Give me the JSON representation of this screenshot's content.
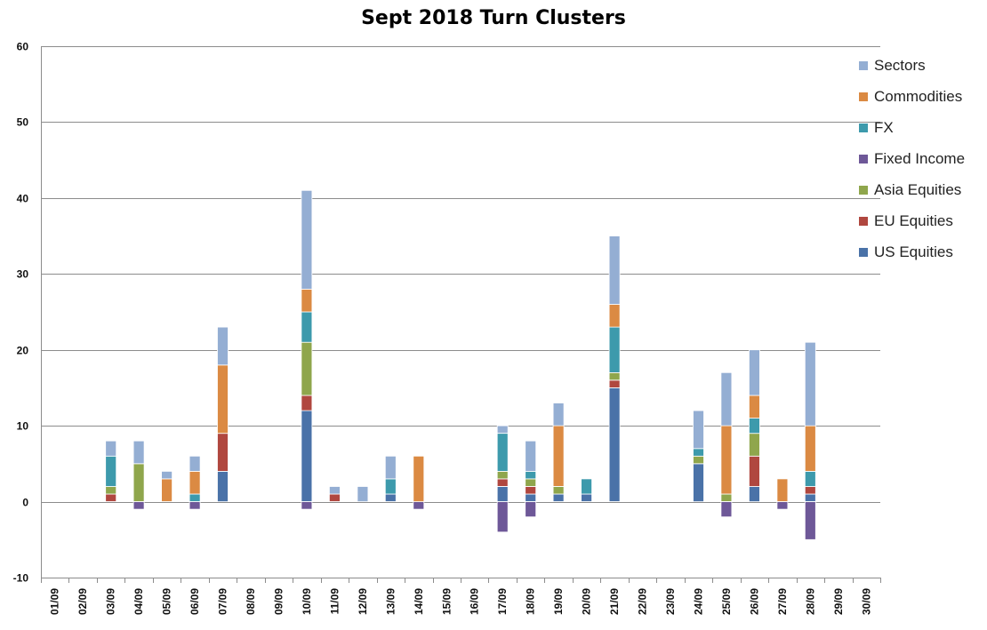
{
  "chart_data": {
    "type": "bar",
    "stacked": true,
    "title": "Sept 2018 Turn Clusters",
    "xlabel": "",
    "ylabel": "",
    "ylim": [
      -10,
      60
    ],
    "yticks": [
      "60",
      "50",
      "40",
      "30",
      "20",
      "10",
      "0",
      "-10"
    ],
    "grid": true,
    "legend_position": "right",
    "categories": [
      "01/09",
      "02/09",
      "03/09",
      "04/09",
      "05/09",
      "06/09",
      "07/09",
      "08/09",
      "09/09",
      "10/09",
      "11/09",
      "12/09",
      "13/09",
      "14/09",
      "15/09",
      "16/09",
      "17/09",
      "18/09",
      "19/09",
      "20/09",
      "21/09",
      "22/09",
      "23/09",
      "24/09",
      "25/09",
      "26/09",
      "27/09",
      "28/09",
      "29/09",
      "30/09"
    ],
    "series": [
      {
        "name": "US Equities",
        "color": "#4a72a8",
        "values": [
          0,
          0,
          0,
          0,
          0,
          0,
          4,
          0,
          0,
          12,
          0,
          0,
          1,
          0,
          0,
          0,
          2,
          1,
          1,
          1,
          15,
          0,
          0,
          5,
          0,
          2,
          0,
          1,
          0,
          0
        ]
      },
      {
        "name": "EU Equities",
        "color": "#b0473f",
        "values": [
          0,
          0,
          1,
          0,
          0,
          0,
          5,
          0,
          0,
          2,
          1,
          0,
          0,
          0,
          0,
          0,
          1,
          1,
          0,
          0,
          1,
          0,
          0,
          0,
          0,
          4,
          0,
          1,
          0,
          0
        ]
      },
      {
        "name": "Asia Equities",
        "color": "#8fa64c",
        "values": [
          0,
          0,
          1,
          5,
          0,
          0,
          0,
          0,
          0,
          7,
          0,
          0,
          0,
          0,
          0,
          0,
          1,
          1,
          1,
          0,
          1,
          0,
          0,
          1,
          1,
          3,
          0,
          0,
          0,
          0
        ]
      },
      {
        "name": "Fixed Income",
        "color": "#6e5898",
        "values": [
          0,
          0,
          0,
          -1,
          0,
          -1,
          0,
          0,
          0,
          -1,
          0,
          0,
          0,
          -1,
          0,
          0,
          -4,
          -2,
          0,
          0,
          0,
          0,
          0,
          0,
          -2,
          0,
          -1,
          -5,
          0,
          0
        ]
      },
      {
        "name": "FX",
        "color": "#3d9aac",
        "values": [
          0,
          0,
          4,
          0,
          0,
          1,
          0,
          0,
          0,
          4,
          0,
          0,
          2,
          0,
          0,
          0,
          5,
          1,
          0,
          2,
          6,
          0,
          0,
          1,
          0,
          2,
          0,
          2,
          0,
          0
        ]
      },
      {
        "name": "Commodities",
        "color": "#db8a43",
        "values": [
          0,
          0,
          0,
          0,
          3,
          3,
          9,
          0,
          0,
          3,
          0,
          0,
          0,
          6,
          0,
          0,
          0,
          0,
          8,
          0,
          3,
          0,
          0,
          0,
          9,
          3,
          3,
          6,
          0,
          0
        ]
      },
      {
        "name": "Sectors",
        "color": "#94aed3",
        "values": [
          0,
          0,
          2,
          3,
          1,
          2,
          5,
          0,
          0,
          13,
          1,
          2,
          3,
          0,
          0,
          0,
          1,
          4,
          3,
          0,
          9,
          0,
          0,
          5,
          7,
          6,
          0,
          11,
          0,
          0
        ]
      }
    ]
  },
  "legend": {
    "items": [
      {
        "label": "Sectors",
        "color": "#94aed3"
      },
      {
        "label": "Commodities",
        "color": "#db8a43"
      },
      {
        "label": "FX",
        "color": "#3d9aac"
      },
      {
        "label": "Fixed Income",
        "color": "#6e5898"
      },
      {
        "label": "Asia Equities",
        "color": "#8fa64c"
      },
      {
        "label": "EU Equities",
        "color": "#b0473f"
      },
      {
        "label": "US Equities",
        "color": "#4a72a8"
      }
    ]
  }
}
